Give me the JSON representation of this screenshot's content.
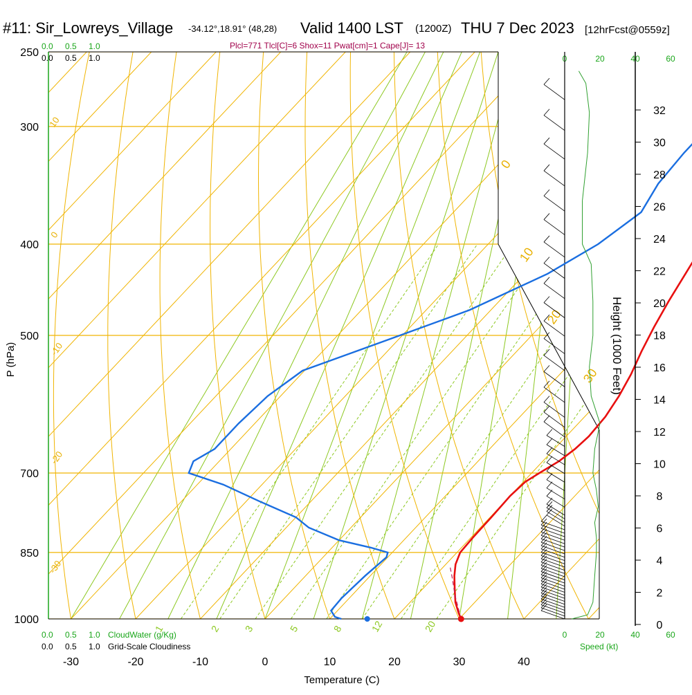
{
  "header": {
    "station": "#11: Sir_Lowreys_Village",
    "coords": "-34.12°,18.91° (48,28)",
    "valid_prefix": "Valid 1400 LST",
    "valid_z": "(1200Z)",
    "valid_date": "THU 7 Dec 2023",
    "forecast": "[12hrFcst@0559z]"
  },
  "stats_line": "Plcl=771 Tlcl[C]=6 Shox=11 Pwat[cm]=1 Cape[J]= 13",
  "cloud_scale": {
    "ticks": [
      "0.0",
      "0.5",
      "1.0"
    ],
    "cloudwater_label": "CloudWater (g/Kg)",
    "cloudiness_label": "Grid-Scale Cloudiness"
  },
  "speed_axis": {
    "ticks": [
      "0",
      "20",
      "40",
      "60"
    ],
    "label": "Speed (kt)"
  },
  "dry_adiabat_labels": [
    "10",
    "0",
    "-10",
    "-20",
    "-30",
    "0",
    "10",
    "20",
    "30"
  ],
  "mixing_ratio_labels": [
    "1",
    "2",
    "3",
    "5",
    "8",
    "12",
    "20"
  ],
  "colors": {
    "isobar": "#f0b400",
    "dry_adiabat": "#f0b400",
    "moist_adiabat": "#8cc820",
    "mixing_ratio": "#8cc820",
    "temperature": "#e81010",
    "dewpoint": "#1a6ee0",
    "wind_speed": "#30a030",
    "stats": "#a0004a",
    "cloud": "#1aa61a"
  },
  "chart_data": {
    "type": "line",
    "xlabel": "Temperature (C)",
    "ylabel": "P (hPa)",
    "y2label": "Height (1000 Feet)",
    "x_ticks": [
      -30,
      -20,
      -10,
      0,
      10,
      20,
      30,
      40
    ],
    "xlim": [
      -34,
      36
    ],
    "p_ticks": [
      250,
      300,
      400,
      500,
      700,
      850,
      1000
    ],
    "p_scale": "log",
    "height_ticks_kft": [
      0,
      2,
      4,
      6,
      8,
      10,
      12,
      14,
      16,
      18,
      20,
      22,
      24,
      26,
      28,
      30,
      32
    ],
    "grid": true,
    "series": [
      {
        "id": "temperature",
        "points": [
          [
            30.3,
            1000
          ],
          [
            29,
            985
          ],
          [
            27,
            960
          ],
          [
            25,
            930
          ],
          [
            23,
            900
          ],
          [
            21.5,
            875
          ],
          [
            20.5,
            850
          ],
          [
            20.3,
            820
          ],
          [
            20.2,
            780
          ],
          [
            20,
            740
          ],
          [
            20.3,
            715
          ],
          [
            21.2,
            700
          ],
          [
            22.5,
            680
          ],
          [
            23.2,
            660
          ],
          [
            23.5,
            640
          ],
          [
            23.2,
            610
          ],
          [
            22.3,
            580
          ],
          [
            21,
            550
          ],
          [
            19.3,
            520
          ],
          [
            17.7,
            490
          ],
          [
            16.2,
            460
          ],
          [
            14.8,
            430
          ],
          [
            13.3,
            400
          ],
          [
            11.8,
            370
          ],
          [
            10.2,
            340
          ],
          [
            8.7,
            310
          ],
          [
            7.2,
            285
          ],
          [
            6,
            262
          ]
        ]
      },
      {
        "id": "dewpoint",
        "points": [
          [
            11.8,
            1000
          ],
          [
            10.5,
            995
          ],
          [
            9,
            980
          ],
          [
            8.8,
            950
          ],
          [
            9.2,
            900
          ],
          [
            9.8,
            860
          ],
          [
            9.3,
            850
          ],
          [
            6,
            840
          ],
          [
            0,
            825
          ],
          [
            -6.5,
            800
          ],
          [
            -10,
            780
          ],
          [
            -18,
            750
          ],
          [
            -26,
            720
          ],
          [
            -33,
            700
          ],
          [
            -34,
            680
          ],
          [
            -32.5,
            660
          ],
          [
            -32.5,
            620
          ],
          [
            -32,
            580
          ],
          [
            -30.3,
            545
          ],
          [
            -21.5,
            505
          ],
          [
            -13.3,
            470
          ],
          [
            -6.5,
            430
          ],
          [
            -3,
            400
          ],
          [
            -1,
            370
          ],
          [
            -2.5,
            345
          ],
          [
            -3,
            320
          ],
          [
            -3,
            300
          ],
          [
            -3.3,
            283
          ],
          [
            -5,
            262
          ]
        ]
      },
      {
        "id": "surface_dewpoint",
        "points": [
          [
            15.8,
            1000
          ]
        ]
      },
      {
        "id": "surface_temperature",
        "points": [
          [
            30.3,
            1000
          ]
        ]
      },
      {
        "id": "wind_speed_kt",
        "points": [
          [
            4,
            1000
          ],
          [
            13,
            990
          ],
          [
            16,
            960
          ],
          [
            17,
            900
          ],
          [
            18,
            850
          ],
          [
            18,
            820
          ],
          [
            17,
            790
          ],
          [
            19,
            760
          ],
          [
            18,
            730
          ],
          [
            16,
            700
          ],
          [
            17,
            660
          ],
          [
            20,
            620
          ],
          [
            15,
            580
          ],
          [
            14,
            540
          ],
          [
            16,
            500
          ],
          [
            16,
            460
          ],
          [
            15,
            420
          ],
          [
            10,
            400
          ],
          [
            10,
            360
          ],
          [
            13,
            320
          ],
          [
            14,
            290
          ],
          [
            12,
            270
          ],
          [
            8,
            262
          ]
        ]
      }
    ]
  }
}
